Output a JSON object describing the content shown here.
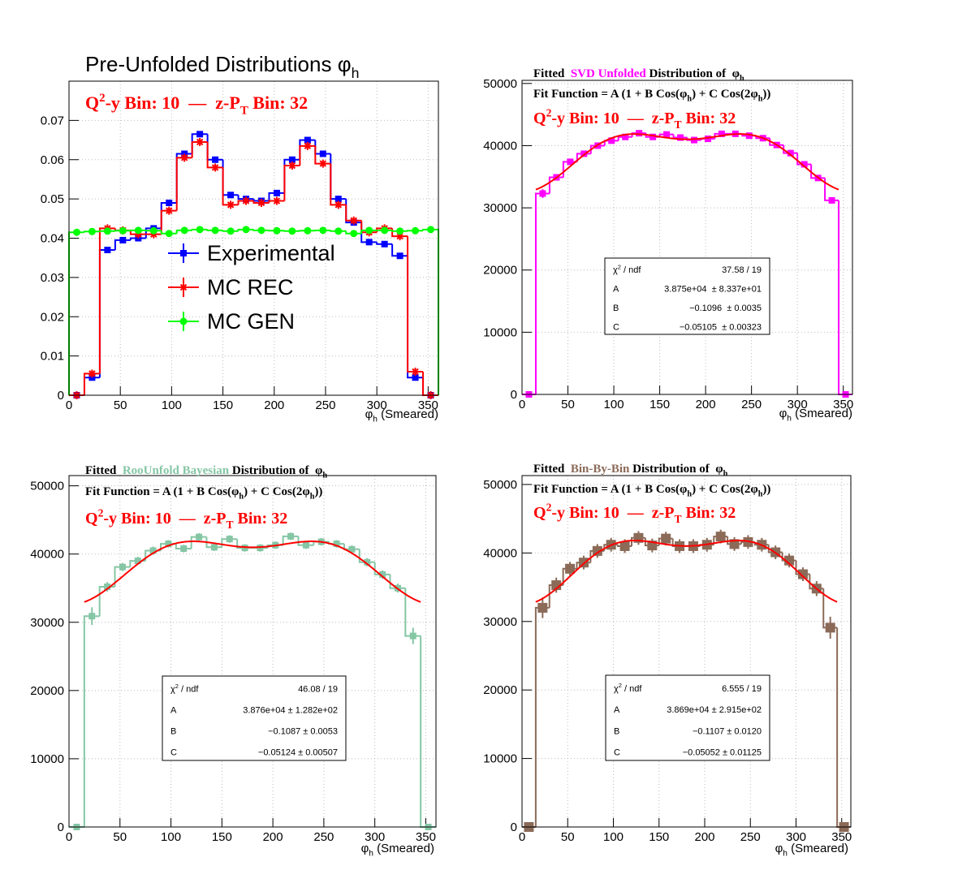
{
  "chart_data": [
    {
      "type": "histogram",
      "title": [
        {
          "t": "Pre-Unfolded Distributions φ"
        },
        {
          "t": "h",
          "s": "sub"
        }
      ],
      "bin_label": [
        {
          "t": "Q"
        },
        {
          "t": "2",
          "s": "sup"
        },
        {
          "t": "-y Bin: 10  —  z-P"
        },
        {
          "t": "T",
          "s": "sub"
        },
        {
          "t": " Bin: 32"
        }
      ],
      "bin_label_color": "#ff0000",
      "xlabel": [
        {
          "t": "φ"
        },
        {
          "t": "h",
          "s": "sub"
        },
        {
          "t": " (Smeared)"
        }
      ],
      "bins": [
        0,
        15,
        30,
        45,
        60,
        75,
        90,
        105,
        120,
        135,
        150,
        165,
        180,
        195,
        210,
        225,
        240,
        255,
        270,
        285,
        300,
        315,
        330,
        345,
        360
      ],
      "xlim": [
        0,
        360
      ],
      "xticks": [
        0,
        50,
        100,
        150,
        200,
        250,
        300,
        350
      ],
      "ylim": [
        0,
        0.08
      ],
      "yticks": [
        0,
        0.01,
        0.02,
        0.03,
        0.04,
        0.05,
        0.06,
        0.07
      ],
      "grid": true,
      "legend": "center",
      "series": [
        {
          "name": "Experimental",
          "color": "#0000ff",
          "marker": "square",
          "values": [
            0,
            0.0045,
            0.037,
            0.0395,
            0.04,
            0.0425,
            0.049,
            0.0615,
            0.0665,
            0.06,
            0.051,
            0.05,
            0.0495,
            0.0515,
            0.06,
            0.065,
            0.0615,
            0.05,
            0.044,
            0.039,
            0.0385,
            0.0355,
            0.0045,
            0
          ]
        },
        {
          "name": "MC REC",
          "color": "#ff0000",
          "marker": "star",
          "values": [
            0,
            0.0055,
            0.0425,
            0.042,
            0.041,
            0.041,
            0.047,
            0.0605,
            0.0645,
            0.058,
            0.0485,
            0.0495,
            0.049,
            0.0495,
            0.0585,
            0.0635,
            0.059,
            0.0485,
            0.0445,
            0.0415,
            0.0425,
            0.0405,
            0.006,
            0
          ]
        },
        {
          "name": "MC GEN",
          "color": "#00ff00",
          "marker": "circle",
          "values": [
            0.0415,
            0.0417,
            0.0418,
            0.0419,
            0.042,
            0.0419,
            0.0412,
            0.042,
            0.0422,
            0.042,
            0.0418,
            0.0422,
            0.042,
            0.0419,
            0.0418,
            0.0419,
            0.042,
            0.0418,
            0.0412,
            0.042,
            0.042,
            0.0418,
            0.0419,
            0.0422
          ]
        }
      ]
    },
    {
      "type": "histogram",
      "title": [
        {
          "t": "Fitted  "
        },
        {
          "t": "SVD Unfolded",
          "color": "#ff00ff"
        },
        {
          "t": " Distribution of  φ"
        },
        {
          "t": "h",
          "s": "sub"
        }
      ],
      "fit_label": [
        {
          "t": "Fit Function = A (1 + B Cos(φ"
        },
        {
          "t": "h",
          "s": "sub"
        },
        {
          "t": ") + C Cos(2φ"
        },
        {
          "t": "h",
          "s": "sub"
        },
        {
          "t": "))"
        }
      ],
      "bin_label": [
        {
          "t": "Q"
        },
        {
          "t": "2",
          "s": "sup"
        },
        {
          "t": "-y Bin: 10  —  z-P"
        },
        {
          "t": "T",
          "s": "sub"
        },
        {
          "t": " Bin: 32"
        }
      ],
      "bin_label_color": "#ff0000",
      "xlabel": [
        {
          "t": "φ"
        },
        {
          "t": "h",
          "s": "sub"
        },
        {
          "t": " (Smeared)"
        }
      ],
      "bins": [
        0,
        15,
        30,
        45,
        60,
        75,
        90,
        105,
        120,
        135,
        150,
        165,
        180,
        195,
        210,
        225,
        240,
        255,
        270,
        285,
        300,
        315,
        330,
        345,
        360
      ],
      "xlim": [
        0,
        360
      ],
      "xticks": [
        0,
        50,
        100,
        150,
        200,
        250,
        300,
        350
      ],
      "ylim": [
        0,
        50500
      ],
      "yticks": [
        0,
        10000,
        20000,
        30000,
        40000,
        50000
      ],
      "grid": true,
      "series": [
        {
          "color": "#ff00ff",
          "marker": "square",
          "values": [
            0,
            32300,
            34900,
            37400,
            38700,
            40000,
            40800,
            41400,
            42000,
            41400,
            41800,
            41300,
            40900,
            41100,
            41900,
            41900,
            41600,
            41200,
            40100,
            38800,
            37000,
            34800,
            31200,
            0
          ],
          "errors": [
            0,
            700,
            500,
            450,
            400,
            400,
            400,
            400,
            400,
            400,
            400,
            400,
            400,
            400,
            400,
            400,
            400,
            400,
            400,
            400,
            400,
            450,
            500,
            0
          ]
        }
      ],
      "fit": {
        "color": "#ff0000",
        "range": [
          15,
          345
        ],
        "chi2_label": [
          {
            "t": "χ"
          },
          {
            "t": "2",
            "s": "sup"
          },
          {
            "t": " / ndf"
          }
        ],
        "chi2": "37.58 / 19",
        "params": [
          {
            "name": "A",
            "value": 38750,
            "label": "3.875e+04  ± 8.337e+01"
          },
          {
            "name": "B",
            "value": -0.1096,
            "label": "−0.1096  ± 0.0035"
          },
          {
            "name": "C",
            "value": -0.05105,
            "label": "−0.05105  ± 0.00323"
          }
        ]
      }
    },
    {
      "type": "histogram",
      "title": [
        {
          "t": "Fitted  "
        },
        {
          "t": "RooUnfold Bayesian",
          "color": "#85c6a5"
        },
        {
          "t": " Distribution of  φ"
        },
        {
          "t": "h",
          "s": "sub"
        }
      ],
      "fit_label": [
        {
          "t": "Fit Function = A (1 + B Cos(φ"
        },
        {
          "t": "h",
          "s": "sub"
        },
        {
          "t": ") + C Cos(2φ"
        },
        {
          "t": "h",
          "s": "sub"
        },
        {
          "t": "))"
        }
      ],
      "bin_label": [
        {
          "t": "Q"
        },
        {
          "t": "2",
          "s": "sup"
        },
        {
          "t": "-y Bin: 10  —  z-P"
        },
        {
          "t": "T",
          "s": "sub"
        },
        {
          "t": " Bin: 32"
        }
      ],
      "bin_label_color": "#ff0000",
      "xlabel": [
        {
          "t": "φ"
        },
        {
          "t": "h",
          "s": "sub"
        },
        {
          "t": " (Smeared)"
        }
      ],
      "bins": [
        0,
        15,
        30,
        45,
        60,
        75,
        90,
        105,
        120,
        135,
        150,
        165,
        180,
        195,
        210,
        225,
        240,
        255,
        270,
        285,
        300,
        315,
        330,
        345,
        360
      ],
      "xlim": [
        0,
        360
      ],
      "xticks": [
        0,
        50,
        100,
        150,
        200,
        250,
        300,
        350
      ],
      "ylim": [
        0,
        51500
      ],
      "yticks": [
        0,
        10000,
        20000,
        30000,
        40000,
        50000
      ],
      "grid": true,
      "series": [
        {
          "color": "#85c6a5",
          "marker": "square",
          "values": [
            0,
            30900,
            35200,
            38100,
            39000,
            40500,
            41500,
            40800,
            42500,
            41000,
            42200,
            40900,
            40900,
            41300,
            42600,
            41300,
            41800,
            41500,
            40700,
            38800,
            37000,
            35000,
            28000,
            0
          ],
          "errors": [
            0,
            1300,
            700,
            600,
            600,
            600,
            550,
            550,
            550,
            550,
            550,
            550,
            550,
            550,
            550,
            550,
            550,
            550,
            550,
            600,
            600,
            650,
            1200,
            0
          ]
        }
      ],
      "fit": {
        "color": "#ff0000",
        "range": [
          15,
          345
        ],
        "chi2_label": [
          {
            "t": "χ"
          },
          {
            "t": "2",
            "s": "sup"
          },
          {
            "t": " / ndf"
          }
        ],
        "chi2": "46.08 / 19",
        "params": [
          {
            "name": "A",
            "value": 38760,
            "label": "3.876e+04 ± 1.282e+02"
          },
          {
            "name": "B",
            "value": -0.1087,
            "label": "−0.1087 ± 0.0053"
          },
          {
            "name": "C",
            "value": -0.05124,
            "label": "−0.05124 ± 0.00507"
          }
        ]
      }
    },
    {
      "type": "histogram",
      "title": [
        {
          "t": "Fitted  "
        },
        {
          "t": "Bin-By-Bin",
          "color": "#8b6a58"
        },
        {
          "t": " Distribution of  φ"
        },
        {
          "t": "h",
          "s": "sub"
        }
      ],
      "fit_label": [
        {
          "t": "Fit Function = A (1 + B Cos(φ"
        },
        {
          "t": "h",
          "s": "sub"
        },
        {
          "t": ") + C Cos(2φ"
        },
        {
          "t": "h",
          "s": "sub"
        },
        {
          "t": "))"
        }
      ],
      "bin_label": [
        {
          "t": "Q"
        },
        {
          "t": "2",
          "s": "sup"
        },
        {
          "t": "-y Bin: 10  —  z-P"
        },
        {
          "t": "T",
          "s": "sub"
        },
        {
          "t": " Bin: 32"
        }
      ],
      "bin_label_color": "#ff0000",
      "xlabel": [
        {
          "t": "φ"
        },
        {
          "t": "h",
          "s": "sub"
        },
        {
          "t": " (Smeared)"
        }
      ],
      "bins": [
        0,
        15,
        30,
        45,
        60,
        75,
        90,
        105,
        120,
        135,
        150,
        165,
        180,
        195,
        210,
        225,
        240,
        255,
        270,
        285,
        300,
        315,
        330,
        345,
        360
      ],
      "xlim": [
        0,
        360
      ],
      "xticks": [
        0,
        50,
        100,
        150,
        200,
        250,
        300,
        350
      ],
      "ylim": [
        0,
        51300
      ],
      "yticks": [
        0,
        10000,
        20000,
        30000,
        40000,
        50000
      ],
      "grid": true,
      "series": [
        {
          "color": "#8b6a58",
          "marker": "bigsquare",
          "values": [
            0,
            32000,
            35300,
            37700,
            38600,
            40300,
            41200,
            41000,
            42200,
            41100,
            42100,
            41000,
            41000,
            41200,
            42400,
            41300,
            41600,
            41200,
            40100,
            38900,
            36900,
            34800,
            29100,
            0
          ],
          "errors": [
            0,
            1500,
            1100,
            1000,
            1000,
            1000,
            1000,
            1000,
            1000,
            1000,
            1000,
            1000,
            1000,
            1000,
            1000,
            1000,
            1000,
            1000,
            1000,
            1000,
            1000,
            1100,
            1600,
            0
          ]
        }
      ],
      "fit": {
        "color": "#ff0000",
        "range": [
          15,
          345
        ],
        "chi2_label": [
          {
            "t": "χ"
          },
          {
            "t": "2",
            "s": "sup"
          },
          {
            "t": " / ndf"
          }
        ],
        "chi2": "6.555 / 19",
        "params": [
          {
            "name": "A",
            "value": 38690,
            "label": "3.869e+04 ± 2.915e+02"
          },
          {
            "name": "B",
            "value": -0.1107,
            "label": "−0.1107 ± 0.0120"
          },
          {
            "name": "C",
            "value": -0.05052,
            "label": "−0.05052 ± 0.01125"
          }
        ]
      }
    }
  ]
}
